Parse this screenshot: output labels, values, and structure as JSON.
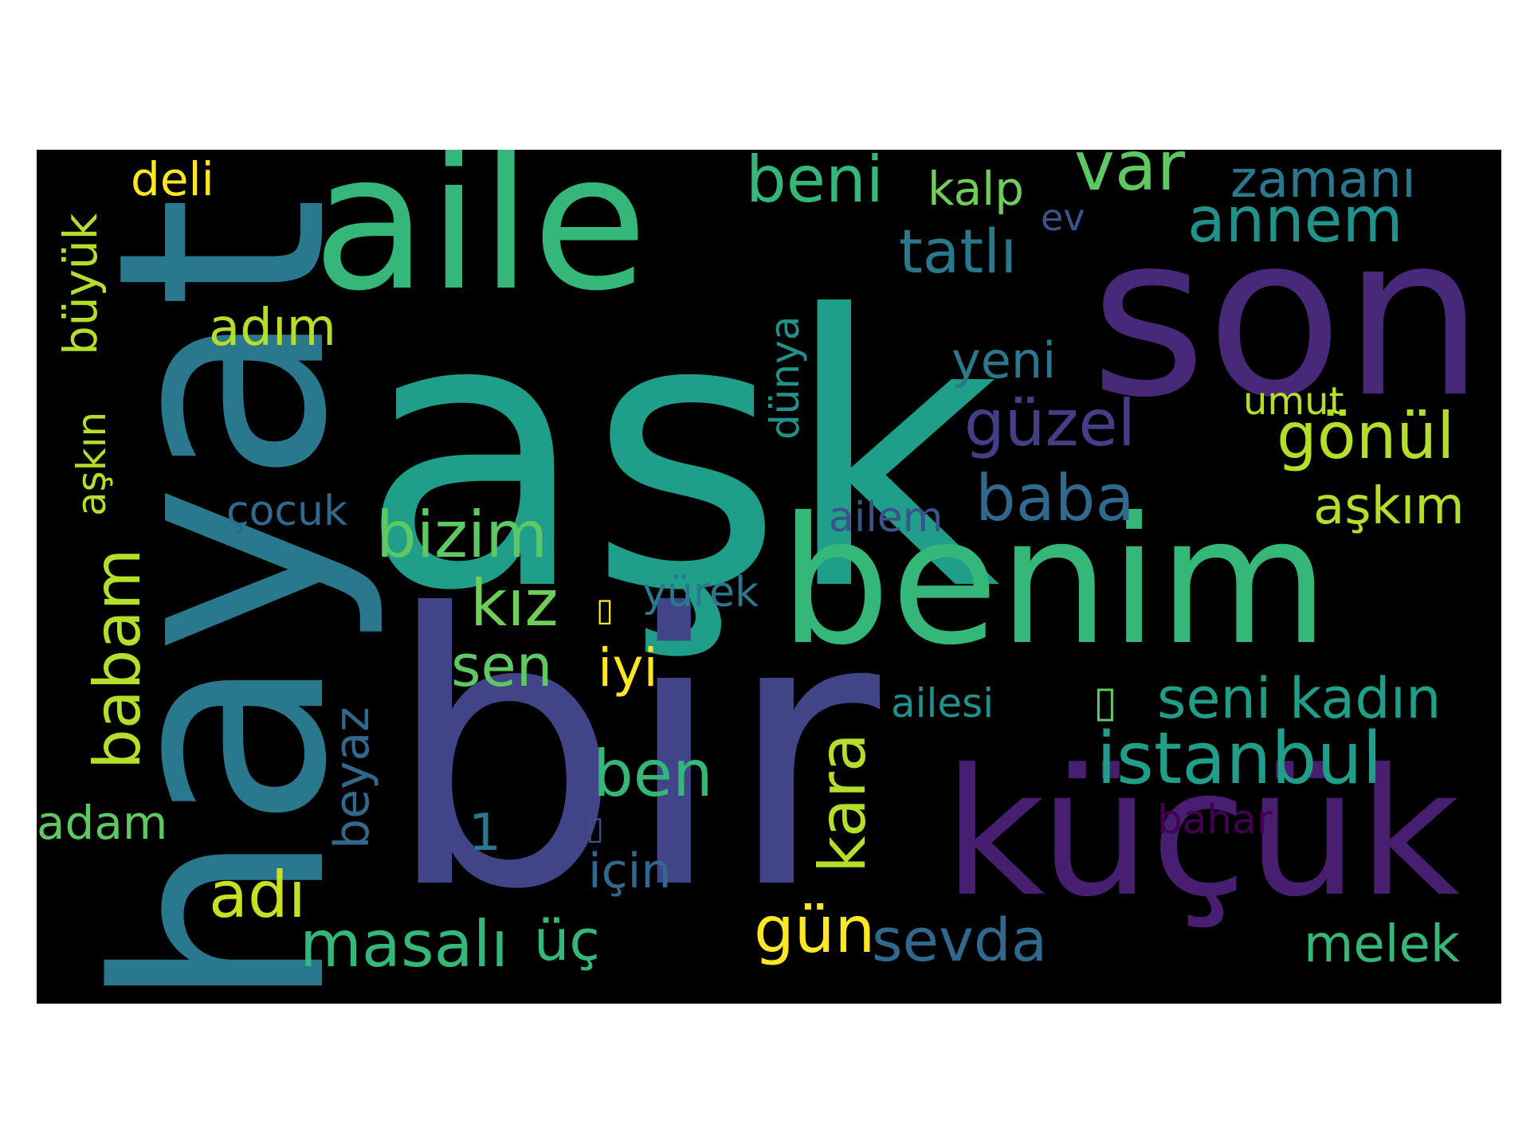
{
  "colors": {
    "page_background": "#ffffff",
    "cloud_background": "#000000"
  },
  "words": [
    {
      "text": "aşk",
      "color": "#1f9e89",
      "rotated": false
    },
    {
      "text": "bir",
      "color": "#414487",
      "rotated": false
    },
    {
      "text": "aile",
      "color": "#35b779",
      "rotated": false
    },
    {
      "text": "hayat",
      "color": "#2a788e",
      "rotated": true
    },
    {
      "text": "son",
      "color": "#482878",
      "rotated": false
    },
    {
      "text": "benim",
      "color": "#35b779",
      "rotated": false
    },
    {
      "text": "küçük",
      "color": "#481f70",
      "rotated": false
    },
    {
      "text": "beni",
      "color": "#35b779",
      "rotated": false
    },
    {
      "text": "kalp",
      "color": "#6ece58",
      "rotated": false
    },
    {
      "text": "var",
      "color": "#5ec962",
      "rotated": false
    },
    {
      "text": "zamanı",
      "color": "#2a788e",
      "rotated": false
    },
    {
      "text": "annem",
      "color": "#21918c",
      "rotated": false
    },
    {
      "text": "ev",
      "color": "#3b528b",
      "rotated": false
    },
    {
      "text": "tatlı",
      "color": "#2a788e",
      "rotated": false
    },
    {
      "text": "deli",
      "color": "#fde725",
      "rotated": false
    },
    {
      "text": "büyük",
      "color": "#b5de2b",
      "rotated": true
    },
    {
      "text": "adım",
      "color": "#b5de2b",
      "rotated": false
    },
    {
      "text": "yeni",
      "color": "#2a788e",
      "rotated": false
    },
    {
      "text": "güzel",
      "color": "#433e85",
      "rotated": false
    },
    {
      "text": "gönül",
      "color": "#b5de2b",
      "rotated": false
    },
    {
      "text": "umut",
      "color": "#b5de2b",
      "rotated": false
    },
    {
      "text": "dünya",
      "color": "#21918c",
      "rotated": true
    },
    {
      "text": "aşkın",
      "color": "#b5de2b",
      "rotated": true
    },
    {
      "text": "baba",
      "color": "#31688e",
      "rotated": false
    },
    {
      "text": "aşkım",
      "color": "#b5de2b",
      "rotated": false
    },
    {
      "text": "çocuk",
      "color": "#31688e",
      "rotated": false
    },
    {
      "text": "ailem",
      "color": "#3b528b",
      "rotated": false
    },
    {
      "text": "bizim",
      "color": "#5ec962",
      "rotated": false
    },
    {
      "text": "babam",
      "color": "#b5de2b",
      "rotated": true
    },
    {
      "text": "kız",
      "color": "#6ece58",
      "rotated": false
    },
    {
      "text": "▯",
      "color": "#fde725",
      "rotated": false
    },
    {
      "text": "yürek",
      "color": "#2a788e",
      "rotated": false
    },
    {
      "text": "sen",
      "color": "#5ec962",
      "rotated": false
    },
    {
      "text": "iyi",
      "color": "#fde725",
      "rotated": false
    },
    {
      "text": "kara",
      "color": "#b5de2b",
      "rotated": true
    },
    {
      "text": "ailesi",
      "color": "#21918c",
      "rotated": false
    },
    {
      "text": "▯",
      "color": "#5ec962",
      "rotated": false
    },
    {
      "text": "seni",
      "color": "#1f9e89",
      "rotated": false
    },
    {
      "text": "kadın",
      "color": "#1f9e89",
      "rotated": false
    },
    {
      "text": "beyaz",
      "color": "#31688e",
      "rotated": true
    },
    {
      "text": "istanbul",
      "color": "#1f9e89",
      "rotated": false
    },
    {
      "text": "ben",
      "color": "#35b779",
      "rotated": false
    },
    {
      "text": "adam",
      "color": "#5ec962",
      "rotated": false
    },
    {
      "text": "1",
      "color": "#2a788e",
      "rotated": false
    },
    {
      "text": "▯",
      "color": "#3b528b",
      "rotated": false
    },
    {
      "text": "bahar",
      "color": "#440154",
      "rotated": false
    },
    {
      "text": "için",
      "color": "#31688e",
      "rotated": false
    },
    {
      "text": "adı",
      "color": "#c8e020",
      "rotated": false
    },
    {
      "text": "masalı",
      "color": "#35b779",
      "rotated": false
    },
    {
      "text": "üç",
      "color": "#35b779",
      "rotated": false
    },
    {
      "text": "gün",
      "color": "#fde725",
      "rotated": false
    },
    {
      "text": "sevda",
      "color": "#31688e",
      "rotated": false
    },
    {
      "text": "melek",
      "color": "#35b779",
      "rotated": false
    }
  ]
}
